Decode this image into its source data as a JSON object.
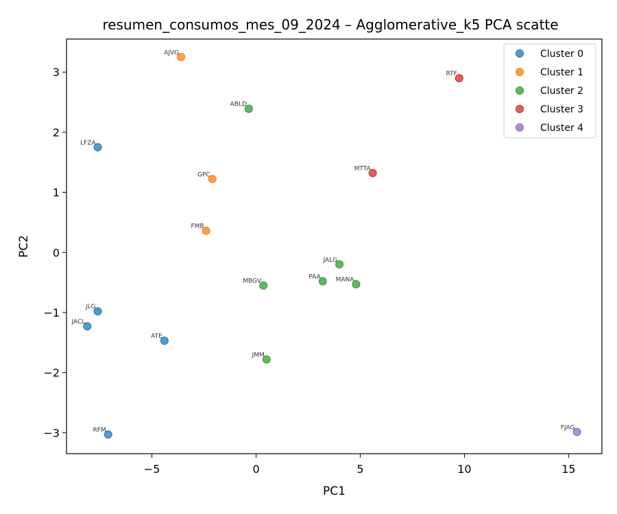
{
  "chart_data": {
    "type": "scatter",
    "title": "resumen_consumos_mes_09_2024 – Agglomerative_k5 PCA scatte",
    "xlabel": "PC1",
    "ylabel": "PC2",
    "xlim": [
      -9.1,
      16.6
    ],
    "ylim": [
      -3.35,
      3.55
    ],
    "xticks": [
      -5,
      0,
      5,
      10,
      15
    ],
    "yticks": [
      -3,
      -2,
      -1,
      0,
      1,
      2,
      3
    ],
    "xtick_labels": [
      "−5",
      "0",
      "5",
      "10",
      "15"
    ],
    "ytick_labels": [
      "−3",
      "−2",
      "−1",
      "0",
      "1",
      "2",
      "3"
    ],
    "legend_position": "top-right",
    "series": [
      {
        "name": "Cluster 0",
        "color": "#1f77b4",
        "points": [
          {
            "label": "LFZA",
            "x": -7.6,
            "y": 1.75
          },
          {
            "label": "JLG",
            "x": -7.6,
            "y": -0.98
          },
          {
            "label": "JACL",
            "x": -8.1,
            "y": -1.23
          },
          {
            "label": "ATE",
            "x": -4.4,
            "y": -1.47
          },
          {
            "label": "RFM",
            "x": -7.1,
            "y": -3.03
          }
        ]
      },
      {
        "name": "Cluster 1",
        "color": "#ff7f0e",
        "points": [
          {
            "label": "AJVG",
            "x": -3.6,
            "y": 3.25
          },
          {
            "label": "GPC",
            "x": -2.1,
            "y": 1.22
          },
          {
            "label": "FMB",
            "x": -2.4,
            "y": 0.36
          }
        ]
      },
      {
        "name": "Cluster 2",
        "color": "#2ca02c",
        "points": [
          {
            "label": "ABLD",
            "x": -0.35,
            "y": 2.39
          },
          {
            "label": "JALG",
            "x": 4.0,
            "y": -0.2
          },
          {
            "label": "PAA",
            "x": 3.2,
            "y": -0.48
          },
          {
            "label": "MANA",
            "x": 4.8,
            "y": -0.53
          },
          {
            "label": "MBGV",
            "x": 0.35,
            "y": -0.55
          },
          {
            "label": "JMM",
            "x": 0.5,
            "y": -1.78
          }
        ]
      },
      {
        "name": "Cluster 3",
        "color": "#d62728",
        "points": [
          {
            "label": "RTF",
            "x": 9.75,
            "y": 2.9
          },
          {
            "label": "MTTA",
            "x": 5.6,
            "y": 1.32
          }
        ]
      },
      {
        "name": "Cluster 4",
        "color": "#9467bd",
        "points": [
          {
            "label": "FJAG",
            "x": 15.4,
            "y": -2.99
          }
        ]
      }
    ]
  }
}
